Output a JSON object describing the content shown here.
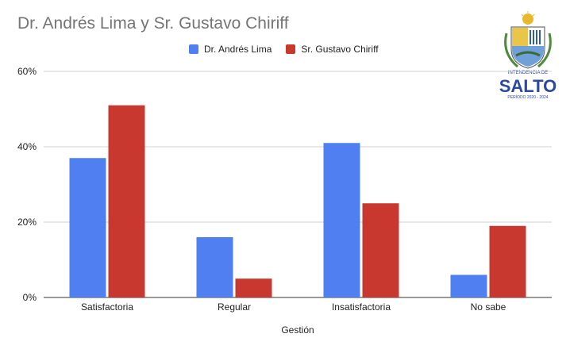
{
  "chart_data": {
    "type": "bar",
    "title": "Dr. Andrés Lima y Sr. Gustavo Chiriff",
    "xlabel": "Gestión",
    "ylabel": "",
    "categories": [
      "Satisfactoria",
      "Regular",
      "Insatisfactoria",
      "No sabe"
    ],
    "series": [
      {
        "name": "Dr. Andrés Lima",
        "values": [
          37,
          16,
          41,
          6
        ],
        "color": "#4f7ff0"
      },
      {
        "name": "Sr. Gustavo Chiriff",
        "values": [
          51,
          5,
          25,
          19
        ],
        "color": "#c9382f"
      }
    ],
    "ylim": [
      0,
      60
    ],
    "yticks": [
      0,
      20,
      40,
      60
    ],
    "ytick_labels": [
      "0%",
      "20%",
      "40%",
      "60%"
    ],
    "grid": true,
    "legend_position": "top"
  },
  "logo": {
    "top_text": "INTENDENCIA DE",
    "name": "SALTO",
    "bottom_text": "PERÍODO 2020 - 2024"
  }
}
